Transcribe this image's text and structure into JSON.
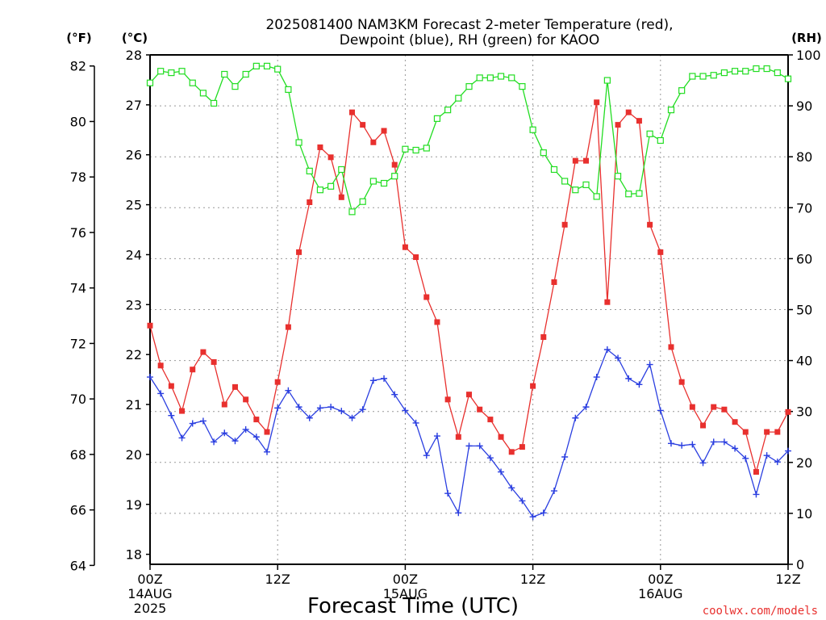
{
  "chart_data": {
    "type": "line",
    "title_line1": "2025081400 NAM3KM Forecast 2-meter Temperature (red),",
    "title_line2": "Dewpoint (blue), RH (green) for KAOO",
    "unit_left_outer": "(°F)",
    "unit_left_inner": "(°C)",
    "unit_right": "(RH)",
    "xlabel": "Forecast Time (UTC)",
    "credit": "coolwx.com/models",
    "x_hours_range": [
      0,
      60
    ],
    "celsius_range": [
      17.8,
      28
    ],
    "rh_range": [
      0,
      100
    ],
    "fahrenheit_ticks": [
      "64",
      "66",
      "68",
      "70",
      "72",
      "74",
      "76",
      "78",
      "80",
      "82"
    ],
    "celsius_ticks": [
      "18",
      "19",
      "20",
      "21",
      "22",
      "23",
      "24",
      "25",
      "26",
      "27",
      "28"
    ],
    "rh_ticks": [
      "0",
      "10",
      "20",
      "30",
      "40",
      "50",
      "60",
      "70",
      "80",
      "90",
      "100"
    ],
    "x_ticks": [
      {
        "hour": 0,
        "label": "00Z",
        "date": "14AUG",
        "year": "2025"
      },
      {
        "hour": 12,
        "label": "12Z",
        "date": "",
        "year": ""
      },
      {
        "hour": 24,
        "label": "00Z",
        "date": "15AUG",
        "year": ""
      },
      {
        "hour": 36,
        "label": "12Z",
        "date": "",
        "year": ""
      },
      {
        "hour": 48,
        "label": "00Z",
        "date": "16AUG",
        "year": ""
      },
      {
        "hour": 60,
        "label": "12Z",
        "date": "",
        "year": ""
      }
    ],
    "x_hours": [
      0,
      1,
      2,
      3,
      4,
      5,
      6,
      7,
      8,
      9,
      10,
      11,
      12,
      13,
      14,
      15,
      16,
      17,
      18,
      19,
      20,
      21,
      22,
      23,
      24,
      25,
      26,
      27,
      28,
      29,
      30,
      31,
      32,
      33,
      34,
      35,
      36,
      37,
      38,
      39,
      40,
      41,
      42,
      43,
      44,
      45,
      46,
      47,
      48,
      49,
      50,
      51,
      52,
      53,
      54,
      55,
      56,
      57,
      58,
      59,
      60
    ],
    "series": [
      {
        "name": "Temperature",
        "unit": "°C",
        "color": "#e8302e",
        "marker": "filled-square",
        "values": [
          22.58,
          21.78,
          21.37,
          20.87,
          21.7,
          22.05,
          21.85,
          21.0,
          21.35,
          21.1,
          20.7,
          20.45,
          21.45,
          22.55,
          24.05,
          25.05,
          26.15,
          25.95,
          25.15,
          26.85,
          26.6,
          26.25,
          26.48,
          25.8,
          24.15,
          23.95,
          23.15,
          22.65,
          21.1,
          20.35,
          21.2,
          20.9,
          20.7,
          20.35,
          20.05,
          20.15,
          21.37,
          22.35,
          23.45,
          24.6,
          25.88,
          25.88,
          27.05,
          23.05,
          26.6,
          26.85,
          26.68,
          24.6,
          24.05,
          22.15,
          21.45,
          20.95,
          20.58,
          20.95,
          20.9,
          20.65,
          20.45,
          19.65,
          20.45,
          20.45,
          20.85
        ]
      },
      {
        "name": "Dewpoint",
        "unit": "°C",
        "color": "#2a3ee0",
        "marker": "plus",
        "values": [
          21.55,
          21.22,
          20.78,
          20.33,
          20.62,
          20.67,
          20.25,
          20.43,
          20.27,
          20.5,
          20.35,
          20.05,
          20.93,
          21.28,
          20.95,
          20.73,
          20.93,
          20.95,
          20.87,
          20.73,
          20.9,
          21.48,
          21.52,
          21.2,
          20.88,
          20.63,
          19.98,
          20.37,
          19.22,
          18.83,
          20.17,
          20.17,
          19.93,
          19.65,
          19.33,
          19.07,
          18.75,
          18.83,
          19.27,
          19.95,
          20.73,
          20.95,
          21.55,
          22.1,
          21.93,
          21.52,
          21.4,
          21.8,
          20.88,
          20.22,
          20.18,
          20.2,
          19.83,
          20.25,
          20.25,
          20.12,
          19.92,
          19.2,
          19.98,
          19.85,
          20.07
        ]
      },
      {
        "name": "RH",
        "unit": "%",
        "color": "#22dd22",
        "marker": "open-square",
        "values": [
          94.5,
          96.8,
          96.5,
          96.8,
          94.5,
          92.5,
          90.5,
          96.2,
          93.8,
          96.2,
          97.8,
          97.8,
          97.2,
          93.2,
          82.8,
          77.2,
          73.5,
          74.2,
          77.5,
          69.2,
          71.2,
          75.2,
          74.8,
          76.2,
          81.5,
          81.3,
          81.7,
          87.5,
          89.2,
          91.5,
          93.8,
          95.5,
          95.5,
          95.8,
          95.5,
          93.8,
          85.3,
          80.8,
          77.5,
          75.2,
          73.5,
          74.5,
          72.2,
          95.0,
          76.2,
          72.7,
          72.8,
          84.5,
          83.2,
          89.2,
          93.0,
          95.8,
          95.8,
          96.0,
          96.5,
          96.8,
          96.8,
          97.3,
          97.3,
          96.5,
          95.3
        ]
      }
    ],
    "grid": true,
    "legend": "none"
  }
}
